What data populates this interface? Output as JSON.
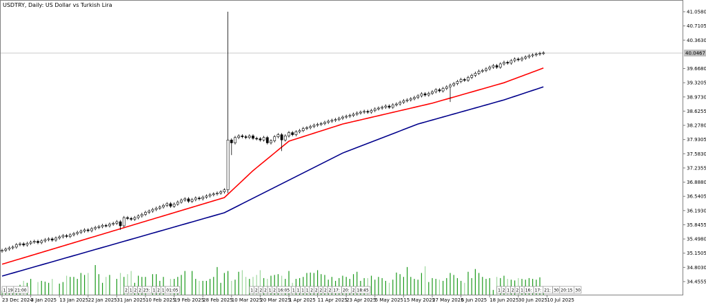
{
  "header": {
    "title": "USDTRY, Daily:  US Dollar vs Turkish Lira"
  },
  "chart_data": {
    "type": "candlestick",
    "symbol": "USDTRY",
    "timeframe": "Daily",
    "current_price": "40.0467",
    "ylim": [
      34.3,
      41.3
    ],
    "y_ticks": [
      "41.0580",
      "40.7105",
      "40.3630",
      "39.6680",
      "39.3205",
      "38.9730",
      "38.6255",
      "38.2780",
      "37.9305",
      "37.5830",
      "37.2355",
      "36.8880",
      "36.5405",
      "36.1930",
      "35.8455",
      "35.4980",
      "35.1505",
      "34.8030",
      "34.4555"
    ],
    "x_ticks": [
      {
        "bar": 0,
        "label": "23 Dec 2024"
      },
      {
        "bar": 8,
        "label": "3 Jan 2025"
      },
      {
        "bar": 16,
        "label": "13 Jan 2025"
      },
      {
        "bar": 24,
        "label": "22 Jan 2025"
      },
      {
        "bar": 32,
        "label": "31 Jan 2025"
      },
      {
        "bar": 40,
        "label": "10 Feb 2025"
      },
      {
        "bar": 48,
        "label": "19 Feb 2025"
      },
      {
        "bar": 56,
        "label": "28 Feb 2025"
      },
      {
        "bar": 64,
        "label": "10 Mar 2025"
      },
      {
        "bar": 72,
        "label": "20 Mar 2025"
      },
      {
        "bar": 80,
        "label": "1 Apr 2025"
      },
      {
        "bar": 88,
        "label": "11 Apr 2025"
      },
      {
        "bar": 96,
        "label": "23 Apr 2025"
      },
      {
        "bar": 104,
        "label": "5 May 2025"
      },
      {
        "bar": 112,
        "label": "15 May 2025"
      },
      {
        "bar": 120,
        "label": "27 May 2025"
      },
      {
        "bar": 128,
        "label": "6 Jun 2025"
      },
      {
        "bar": 136,
        "label": "18 Jun 2025"
      },
      {
        "bar": 144,
        "label": "30 Jun 2025"
      },
      {
        "bar": 152,
        "label": "10 Jul 2025"
      }
    ],
    "first_open": 35.2,
    "closes": [
      35.22,
      35.25,
      35.28,
      35.3,
      35.36,
      35.38,
      35.35,
      35.39,
      35.42,
      35.44,
      35.41,
      35.45,
      35.48,
      35.5,
      35.47,
      35.52,
      35.55,
      35.58,
      35.56,
      35.6,
      35.63,
      35.66,
      35.69,
      35.72,
      35.7,
      35.75,
      35.78,
      35.8,
      35.83,
      35.82,
      35.86,
      35.88,
      35.92,
      35.82,
      36.02,
      36.0,
      35.98,
      36.02,
      36.06,
      36.1,
      36.15,
      36.18,
      36.22,
      36.25,
      36.28,
      36.32,
      36.36,
      36.3,
      36.35,
      36.4,
      36.45,
      36.48,
      36.42,
      36.46,
      36.5,
      36.48,
      36.52,
      36.55,
      36.58,
      36.6,
      36.62,
      36.65,
      36.7,
      37.92,
      37.85,
      37.98,
      38.02,
      38.0,
      37.98,
      38.02,
      37.96,
      37.95,
      37.92,
      37.98,
      37.85,
      37.9,
      38.0,
      38.05,
      37.92,
      38.02,
      38.1,
      38.05,
      38.12,
      38.15,
      38.2,
      38.22,
      38.25,
      38.28,
      38.3,
      38.32,
      38.35,
      38.38,
      38.4,
      38.42,
      38.45,
      38.48,
      38.5,
      38.52,
      38.55,
      38.58,
      38.6,
      38.62,
      38.6,
      38.64,
      38.68,
      38.7,
      38.72,
      38.75,
      38.72,
      38.78,
      38.8,
      38.84,
      38.88,
      38.9,
      38.93,
      38.96,
      39.0,
      39.05,
      39.02,
      39.06,
      39.1,
      39.15,
      39.12,
      39.18,
      39.22,
      39.26,
      39.3,
      39.35,
      39.4,
      39.38,
      39.45,
      39.5,
      39.55,
      39.6,
      39.62,
      39.66,
      39.7,
      39.74,
      39.7,
      39.78,
      39.82,
      39.8,
      39.86,
      39.9,
      39.88,
      39.92,
      39.95,
      39.98,
      40.0,
      40.02,
      40.04,
      40.05
    ],
    "extremes": [
      {
        "bar": 63,
        "high": 41.058,
        "low": 36.62
      },
      {
        "bar": 64,
        "low": 37.55
      },
      {
        "bar": 78,
        "low": 37.65
      },
      {
        "bar": 33,
        "low": 35.72
      },
      {
        "bar": 125,
        "low": 38.85
      }
    ],
    "volumes": [
      10,
      12,
      5,
      8,
      20,
      25,
      35,
      30,
      40,
      0,
      32,
      35,
      33,
      30,
      40,
      0,
      28,
      32,
      48,
      45,
      45,
      40,
      55,
      50,
      55,
      0,
      75,
      52,
      30,
      45,
      50,
      0,
      40,
      55,
      45,
      52,
      60,
      30,
      48,
      45,
      45,
      0,
      52,
      52,
      35,
      45,
      0,
      40,
      40,
      45,
      50,
      60,
      0,
      60,
      40,
      35,
      35,
      35,
      40,
      45,
      70,
      30,
      55,
      60,
      35,
      38,
      58,
      62,
      45,
      40,
      45,
      50,
      62,
      42,
      40,
      48,
      50,
      52,
      48,
      40,
      60,
      30,
      40,
      42,
      45,
      55,
      56,
      55,
      62,
      52,
      50,
      38,
      45,
      35,
      42,
      48,
      45,
      40,
      52,
      58,
      35,
      42,
      42,
      48,
      38,
      45,
      42,
      35,
      30,
      38,
      56,
      52,
      45,
      70,
      45,
      40,
      38,
      55,
      72,
      32,
      42,
      40,
      38,
      35,
      42,
      55,
      50,
      42,
      35,
      30,
      58,
      42,
      65,
      55,
      45,
      40,
      42,
      12,
      45,
      42,
      48,
      40,
      38,
      36,
      42,
      40,
      38,
      42,
      40,
      38,
      44,
      14
    ],
    "series": [
      {
        "color": "#ff0000",
        "points": [
          [
            0,
            34.88
          ],
          [
            62,
            36.51
          ],
          [
            70,
            37.17
          ],
          [
            80,
            37.89
          ],
          [
            95,
            38.31
          ],
          [
            120,
            38.82
          ],
          [
            140,
            39.32
          ],
          [
            151,
            39.68
          ]
        ]
      },
      {
        "color": "#00008b",
        "points": [
          [
            0,
            34.59
          ],
          [
            62,
            36.14
          ],
          [
            95,
            37.6
          ],
          [
            116,
            38.31
          ],
          [
            140,
            38.9
          ],
          [
            151,
            39.22
          ]
        ]
      }
    ],
    "separators": [
      {
        "bar": 0,
        "labels": [
          "1",
          "19",
          "21:00"
        ]
      },
      {
        "bar": 34,
        "labels": [
          "2",
          "1",
          "2",
          "2",
          "23:",
          "1",
          "2",
          "1",
          "01:05"
        ]
      },
      {
        "bar": 69,
        "labels": [
          "1",
          "2",
          "2",
          "2",
          "1",
          "2",
          "16:05",
          "1",
          "1",
          "1",
          "1",
          "2",
          "2",
          "2",
          "2",
          "2",
          "17:",
          "20:",
          "2",
          "18:45"
        ]
      },
      {
        "bar": 138,
        "labels": [
          "1",
          "2",
          "1",
          "2",
          "2",
          "1",
          "16:",
          "17:",
          "21:",
          "30",
          "20:15",
          "30"
        ]
      }
    ],
    "colors": {
      "bull_body": "#ffffff",
      "bear_body": "#000000",
      "volume_up": "#1a9a1a",
      "volume_down": "#9fd89f",
      "price_line": "#c0c0c0"
    }
  }
}
